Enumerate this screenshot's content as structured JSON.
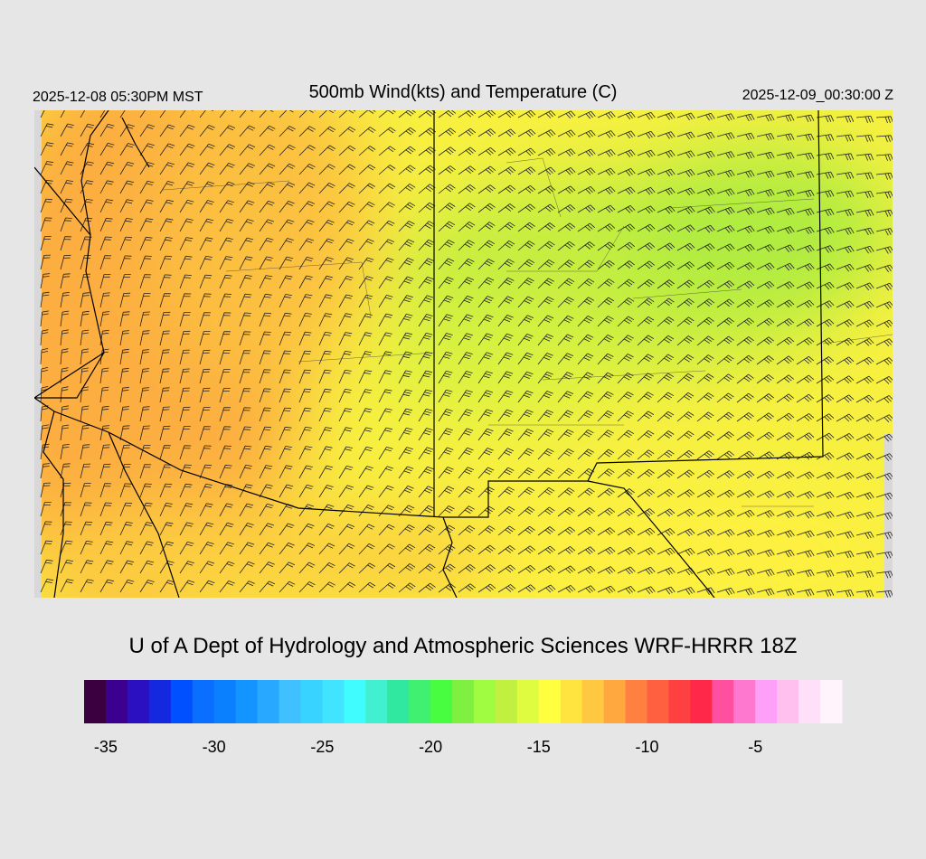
{
  "header": {
    "title": "500mb Wind(kts) and Temperature (C)",
    "local_time": "2025-12-08 05:30PM MST",
    "valid_time": "2025-12-09_00:30:00 Z"
  },
  "footer": {
    "credit": "U of A Dept of Hydrology and Atmospheric Sciences WRF-HRRR 18Z"
  },
  "colorbar": {
    "lim": [
      -36,
      -1
    ],
    "ticks": [
      -35,
      -30,
      -25,
      -20,
      -15,
      -10,
      -5
    ],
    "colors": [
      "#3a0040",
      "#3c0090",
      "#2a10c0",
      "#1428e0",
      "#0050ff",
      "#0a6eff",
      "#0a80ff",
      "#1494ff",
      "#28a8ff",
      "#40c0ff",
      "#38d4ff",
      "#40e4ff",
      "#40fcff",
      "#40f0d0",
      "#30e8a0",
      "#40f070",
      "#48fc40",
      "#80f040",
      "#a0fc40",
      "#c0f040",
      "#e0fc40",
      "#ffff40",
      "#ffe440",
      "#ffc840",
      "#ffa840",
      "#ff8040",
      "#ff6040",
      "#ff4040",
      "#ff2848",
      "#ff50a0",
      "#ff78d0",
      "#ffa0f8",
      "#ffc0f0",
      "#ffe0f8",
      "#fff4fc"
    ]
  }
}
